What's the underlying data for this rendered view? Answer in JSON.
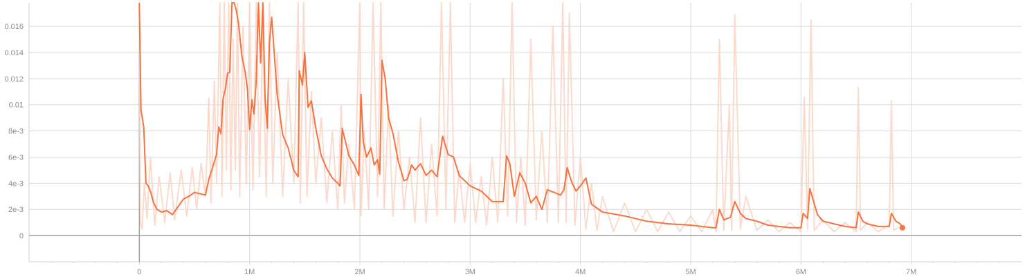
{
  "chart_data": {
    "type": "line",
    "title": "",
    "xlabel": "",
    "ylabel": "",
    "xlim": [
      -1000000,
      8000000
    ],
    "ylim": [
      -0.002,
      0.0178
    ],
    "grid": true,
    "x_ticks": [
      {
        "value": 0,
        "label": "0"
      },
      {
        "value": 1000000,
        "label": "1M"
      },
      {
        "value": 2000000,
        "label": "2M"
      },
      {
        "value": 3000000,
        "label": "3M"
      },
      {
        "value": 4000000,
        "label": "4M"
      },
      {
        "value": 5000000,
        "label": "5M"
      },
      {
        "value": 6000000,
        "label": "6M"
      },
      {
        "value": 7000000,
        "label": "7M"
      }
    ],
    "y_ticks": [
      {
        "value": 0,
        "label": "0"
      },
      {
        "value": 0.002,
        "label": "2e-3"
      },
      {
        "value": 0.004,
        "label": "4e-3"
      },
      {
        "value": 0.006,
        "label": "6e-3"
      },
      {
        "value": 0.008,
        "label": "8e-3"
      },
      {
        "value": 0.01,
        "label": "0.01"
      },
      {
        "value": 0.012,
        "label": "0.012"
      },
      {
        "value": 0.014,
        "label": "0.014"
      },
      {
        "value": 0.016,
        "label": "0.016"
      }
    ],
    "colors": {
      "smoothed": "#f4733e",
      "raw": "#fbd6c8",
      "axis": "#9e9e9e",
      "grid": "#d9d9d9",
      "text": "#8c8c8c"
    },
    "series": [
      {
        "role": "smoothed",
        "x": [
          0,
          15000,
          40000,
          60000,
          80000,
          100000,
          130000,
          160000,
          200000,
          250000,
          300000,
          350000,
          400000,
          450000,
          500000,
          550000,
          600000,
          630000,
          660000,
          700000,
          720000,
          740000,
          760000,
          780000,
          800000,
          820000,
          840000,
          860000,
          880000,
          900000,
          930000,
          960000,
          980000,
          1000000,
          1020000,
          1040000,
          1060000,
          1080000,
          1100000,
          1120000,
          1140000,
          1160000,
          1180000,
          1200000,
          1250000,
          1300000,
          1350000,
          1400000,
          1440000,
          1450000,
          1480000,
          1500000,
          1530000,
          1560000,
          1600000,
          1650000,
          1700000,
          1750000,
          1800000,
          1820000,
          1840000,
          1900000,
          1950000,
          1990000,
          2010000,
          2030000,
          2060000,
          2100000,
          2130000,
          2160000,
          2180000,
          2200000,
          2230000,
          2260000,
          2300000,
          2350000,
          2400000,
          2430000,
          2470000,
          2500000,
          2550000,
          2600000,
          2650000,
          2700000,
          2750000,
          2800000,
          2850000,
          2900000,
          3000000,
          3100000,
          3200000,
          3300000,
          3330000,
          3360000,
          3400000,
          3450000,
          3500000,
          3550000,
          3600000,
          3650000,
          3700000,
          3760000,
          3820000,
          3850000,
          3880000,
          3920000,
          3960000,
          4000000,
          4050000,
          4100000,
          4200000,
          4400000,
          4600000,
          4800000,
          5000000,
          5100000,
          5200000,
          5230000,
          5260000,
          5300000,
          5360000,
          5400000,
          5450000,
          5500000,
          5600000,
          5700000,
          5800000,
          5900000,
          6000000,
          6020000,
          6060000,
          6080000,
          6100000,
          6150000,
          6200000,
          6300000,
          6400000,
          6500000,
          6520000,
          6560000,
          6600000,
          6700000,
          6800000,
          6820000,
          6860000,
          6900000,
          6920000
        ],
        "y": [
          0.0178,
          0.0096,
          0.0083,
          0.004,
          0.0038,
          0.0034,
          0.0025,
          0.002,
          0.0018,
          0.0019,
          0.0016,
          0.0022,
          0.0028,
          0.003,
          0.0033,
          0.0032,
          0.0031,
          0.0043,
          0.0051,
          0.0062,
          0.0083,
          0.0078,
          0.0105,
          0.0112,
          0.0124,
          0.0125,
          0.0178,
          0.0178,
          0.0172,
          0.0162,
          0.0137,
          0.0125,
          0.0112,
          0.0081,
          0.0104,
          0.0093,
          0.0118,
          0.0178,
          0.0132,
          0.0178,
          0.0105,
          0.0082,
          0.0148,
          0.0167,
          0.0108,
          0.0077,
          0.0067,
          0.005,
          0.0045,
          0.0126,
          0.0115,
          0.014,
          0.0098,
          0.0103,
          0.0082,
          0.0061,
          0.0051,
          0.0044,
          0.004,
          0.0038,
          0.0082,
          0.0061,
          0.0054,
          0.0046,
          0.0108,
          0.0072,
          0.006,
          0.0067,
          0.0054,
          0.0058,
          0.0047,
          0.0134,
          0.012,
          0.009,
          0.0078,
          0.0056,
          0.0042,
          0.0043,
          0.0054,
          0.005,
          0.0055,
          0.0046,
          0.005,
          0.0045,
          0.0076,
          0.0062,
          0.006,
          0.0046,
          0.0038,
          0.0034,
          0.0026,
          0.0026,
          0.0061,
          0.0055,
          0.003,
          0.0048,
          0.004,
          0.0025,
          0.003,
          0.002,
          0.0035,
          0.0033,
          0.0031,
          0.0035,
          0.0052,
          0.0041,
          0.0034,
          0.0038,
          0.0044,
          0.0024,
          0.0018,
          0.0015,
          0.0011,
          0.0009,
          0.0008,
          0.0007,
          0.0006,
          0.0006,
          0.002,
          0.0012,
          0.0014,
          0.0026,
          0.0017,
          0.0013,
          0.0011,
          0.0008,
          0.0007,
          0.0006,
          0.0006,
          0.0017,
          0.0013,
          0.0036,
          0.003,
          0.0016,
          0.0011,
          0.0009,
          0.0007,
          0.0006,
          0.0018,
          0.0011,
          0.0009,
          0.0007,
          0.0007,
          0.0017,
          0.0011,
          0.0009,
          0.0006
        ]
      },
      {
        "role": "raw",
        "x": [
          0,
          10000,
          25000,
          45000,
          70000,
          100000,
          140000,
          180000,
          230000,
          280000,
          320000,
          380000,
          430000,
          480000,
          520000,
          560000,
          600000,
          630000,
          650000,
          680000,
          700000,
          730000,
          750000,
          770000,
          790000,
          810000,
          830000,
          850000,
          870000,
          890000,
          910000,
          940000,
          970000,
          1000000,
          1030000,
          1060000,
          1090000,
          1120000,
          1150000,
          1180000,
          1210000,
          1250000,
          1300000,
          1350000,
          1400000,
          1440000,
          1460000,
          1490000,
          1520000,
          1560000,
          1600000,
          1650000,
          1700000,
          1750000,
          1800000,
          1830000,
          1860000,
          1900000,
          1950000,
          2000000,
          2010000,
          2040000,
          2080000,
          2120000,
          2160000,
          2190000,
          2220000,
          2260000,
          2300000,
          2350000,
          2400000,
          2450000,
          2500000,
          2550000,
          2600000,
          2650000,
          2700000,
          2740000,
          2780000,
          2820000,
          2860000,
          2900000,
          2950000,
          3000000,
          3050000,
          3100000,
          3150000,
          3200000,
          3250000,
          3300000,
          3340000,
          3380000,
          3420000,
          3460000,
          3500000,
          3550000,
          3600000,
          3650000,
          3700000,
          3750000,
          3800000,
          3840000,
          3870000,
          3900000,
          3950000,
          4000000,
          4050000,
          4100000,
          4150000,
          4200000,
          4300000,
          4400000,
          4500000,
          4600000,
          4700000,
          4800000,
          4900000,
          5000000,
          5100000,
          5200000,
          5230000,
          5260000,
          5300000,
          5350000,
          5370000,
          5400000,
          5450000,
          5500000,
          5600000,
          5700000,
          5800000,
          5900000,
          6000000,
          6030000,
          6060000,
          6090000,
          6120000,
          6200000,
          6300000,
          6400000,
          6500000,
          6520000,
          6540000,
          6600000,
          6700000,
          6800000,
          6820000,
          6840000,
          6880000,
          6920000
        ],
        "y": [
          0.0178,
          0.001,
          0.0005,
          0.004,
          0.0013,
          0.006,
          0.0008,
          0.0045,
          0.001,
          0.0048,
          0.0012,
          0.005,
          0.0015,
          0.0052,
          0.002,
          0.0055,
          0.003,
          0.0105,
          0.0025,
          0.0118,
          0.004,
          0.0178,
          0.003,
          0.0178,
          0.005,
          0.0178,
          0.0035,
          0.015,
          0.005,
          0.0178,
          0.003,
          0.016,
          0.004,
          0.0178,
          0.0035,
          0.0178,
          0.0045,
          0.016,
          0.003,
          0.0178,
          0.004,
          0.014,
          0.003,
          0.012,
          0.004,
          0.0178,
          0.0025,
          0.0178,
          0.003,
          0.011,
          0.004,
          0.009,
          0.0025,
          0.008,
          0.002,
          0.01,
          0.0025,
          0.007,
          0.002,
          0.0178,
          0.0015,
          0.008,
          0.002,
          0.0178,
          0.003,
          0.0178,
          0.002,
          0.01,
          0.0015,
          0.008,
          0.002,
          0.006,
          0.001,
          0.009,
          0.001,
          0.007,
          0.0015,
          0.0178,
          0.002,
          0.0178,
          0.001,
          0.005,
          0.001,
          0.0055,
          0.001,
          0.0045,
          0.0008,
          0.006,
          0.001,
          0.012,
          0.0015,
          0.0178,
          0.001,
          0.006,
          0.0008,
          0.015,
          0.0012,
          0.008,
          0.001,
          0.016,
          0.001,
          0.0178,
          0.001,
          0.017,
          0.0008,
          0.006,
          0.0005,
          0.004,
          0.0004,
          0.003,
          0.0003,
          0.0025,
          0.0003,
          0.002,
          0.0003,
          0.0018,
          0.0003,
          0.0015,
          0.0003,
          0.002,
          0.0003,
          0.015,
          0.0004,
          0.01,
          0.0004,
          0.0169,
          0.0005,
          0.003,
          0.0004,
          0.0012,
          0.0003,
          0.001,
          0.0003,
          0.0106,
          0.0005,
          0.0165,
          0.0004,
          0.0012,
          0.0003,
          0.001,
          0.0003,
          0.0113,
          0.0004,
          0.001,
          0.0003,
          0.0008,
          0.0103,
          0.0004,
          0.0006,
          0.0005
        ]
      }
    ]
  }
}
